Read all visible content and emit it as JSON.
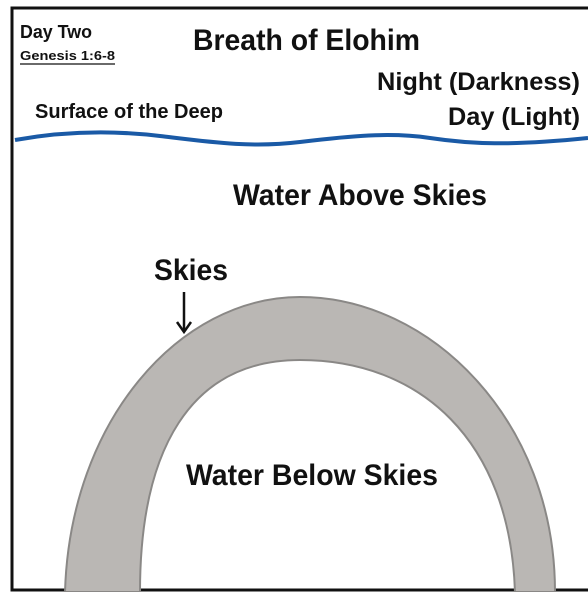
{
  "header": {
    "day": "Day Two",
    "reference": "Genesis 1:6-8",
    "title": "Breath of Elohim"
  },
  "labels": {
    "night": "Night (Darkness)",
    "day": "Day (Light)",
    "surface": "Surface of the Deep",
    "water_above": "Water Above Skies",
    "skies": "Skies",
    "water_below": "Water Below Skies"
  }
}
